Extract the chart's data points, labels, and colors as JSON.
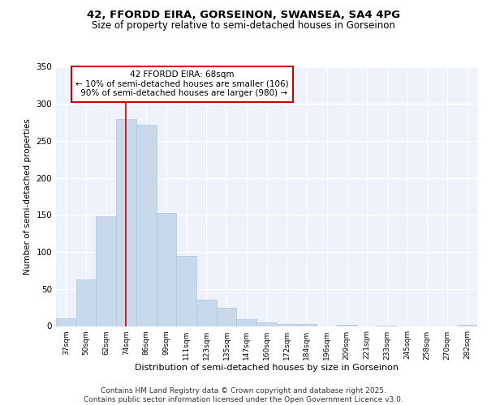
{
  "title_line1": "42, FFORDD EIRA, GORSEINON, SWANSEA, SA4 4PG",
  "title_line2": "Size of property relative to semi-detached houses in Gorseinon",
  "xlabel": "Distribution of semi-detached houses by size in Gorseinon",
  "ylabel": "Number of semi-detached properties",
  "categories": [
    "37sqm",
    "50sqm",
    "62sqm",
    "74sqm",
    "86sqm",
    "99sqm",
    "111sqm",
    "123sqm",
    "135sqm",
    "147sqm",
    "160sqm",
    "172sqm",
    "184sqm",
    "196sqm",
    "209sqm",
    "221sqm",
    "233sqm",
    "245sqm",
    "258sqm",
    "270sqm",
    "282sqm"
  ],
  "values": [
    10,
    63,
    148,
    280,
    272,
    153,
    95,
    36,
    25,
    9,
    5,
    3,
    3,
    0,
    2,
    0,
    1,
    0,
    0,
    0,
    2
  ],
  "bar_color": "#c8d9ec",
  "bar_edge_color": "#aec6e0",
  "vline_x": 2.97,
  "vline_color": "#cc0000",
  "annotation_box_text": "42 FFORDD EIRA: 68sqm\n← 10% of semi-detached houses are smaller (106)\n 90% of semi-detached houses are larger (980) →",
  "ylim": [
    0,
    350
  ],
  "yticks": [
    0,
    50,
    100,
    150,
    200,
    250,
    300,
    350
  ],
  "plot_bg_color": "#eef2fa",
  "grid_color": "#ffffff",
  "footer_text": "Contains HM Land Registry data © Crown copyright and database right 2025.\nContains public sector information licensed under the Open Government Licence v3.0.",
  "title_fontsize": 9.5,
  "subtitle_fontsize": 8.5,
  "annotation_fontsize": 7.5,
  "footer_fontsize": 6.5,
  "xlabel_fontsize": 8,
  "ylabel_fontsize": 7.5,
  "ytick_fontsize": 7.5,
  "xtick_fontsize": 6.5
}
